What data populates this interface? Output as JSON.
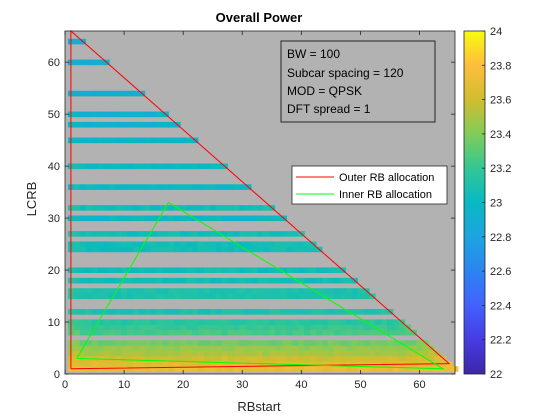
{
  "chart_data": {
    "type": "heatmap",
    "title": "Overall Power",
    "xlabel": "RBstart",
    "ylabel": "LCRB",
    "xlim": [
      0,
      66
    ],
    "ylim": [
      0,
      66
    ],
    "xticks": [
      "0",
      "10",
      "20",
      "30",
      "40",
      "50",
      "60"
    ],
    "yticks": [
      "0",
      "10",
      "20",
      "30",
      "40",
      "50",
      "60"
    ],
    "colorbar": {
      "min": 22,
      "max": 24,
      "ticks": [
        "22",
        "22.2",
        "22.4",
        "22.6",
        "22.8",
        "23",
        "23.2",
        "23.4",
        "23.6",
        "23.8",
        "24"
      ]
    },
    "n_rb": 66,
    "background_color": "#b2b2b2",
    "valid_lcrb_rows": [
      1,
      2,
      3,
      4,
      5,
      6,
      8,
      9,
      10,
      12,
      15,
      16,
      18,
      20,
      24,
      25,
      27,
      30,
      32,
      36,
      40,
      45,
      48,
      50,
      54,
      60,
      64
    ],
    "row_power_dBm": {
      "1": 23.7,
      "2": 23.65,
      "3": 23.6,
      "4": 23.5,
      "5": 23.45,
      "6": 23.35,
      "8": 23.25,
      "9": 23.2,
      "10": 23.15,
      "12": 23.1,
      "15": 23.1,
      "16": 23.1,
      "18": 23.05,
      "20": 23.05,
      "24": 23.05,
      "25": 23.05,
      "27": 23.05,
      "30": 23.0,
      "32": 23.05,
      "36": 23.0,
      "40": 23.0,
      "45": 22.95,
      "48": 22.95,
      "50": 22.95,
      "54": 22.9,
      "60": 22.9,
      "64": 22.85
    },
    "annotation": [
      "BW = 100",
      "Subcar spacing  = 120",
      "MOD = QPSK",
      "DFT spread = 1"
    ],
    "legend": {
      "placement": "right",
      "entries": [
        {
          "name": "Outer RB allocation",
          "color": "#ff0000"
        },
        {
          "name": "Inner RB allocation",
          "color": "#00ff00"
        }
      ]
    },
    "outer_boundary": {
      "x": [
        1,
        1,
        65,
        1
      ],
      "y": [
        1,
        66,
        2,
        1
      ]
    },
    "inner_boundary": {
      "x": [
        2,
        17.5,
        64,
        2
      ],
      "y": [
        3,
        33,
        1,
        3
      ]
    }
  }
}
